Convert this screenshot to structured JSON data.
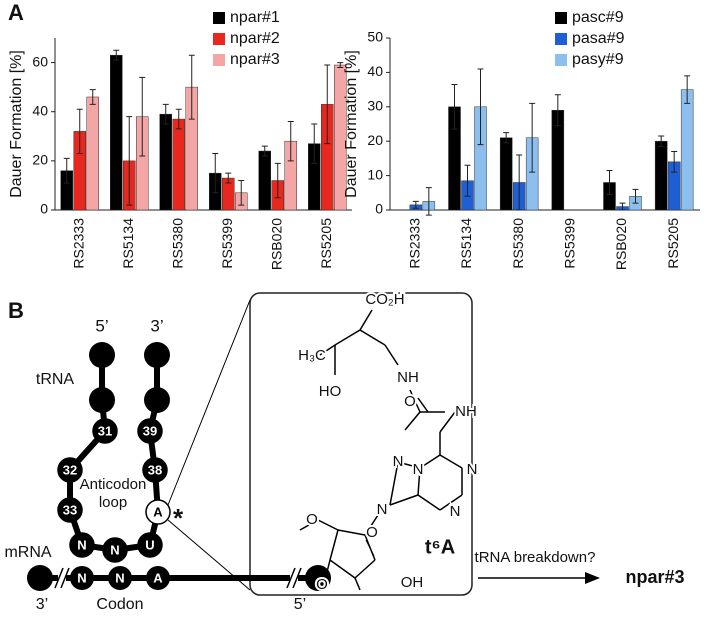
{
  "chart_data": [
    {
      "type": "bar",
      "panel": "A",
      "y_label": "Dauer Formation [%]",
      "categories": [
        "RS2333",
        "RS5134",
        "RS5380",
        "RS5399",
        "RSB020",
        "RS5205"
      ],
      "series": [
        {
          "name": "npar#1",
          "color": "#000000",
          "values": [
            16,
            63,
            39,
            15,
            24,
            27
          ],
          "errors": [
            5,
            2,
            4,
            8,
            2,
            8
          ]
        },
        {
          "name": "npar#2",
          "color": "#e8281e",
          "values": [
            32,
            20,
            37,
            13,
            12,
            43
          ],
          "errors": [
            9,
            18,
            4,
            2,
            7,
            16
          ]
        },
        {
          "name": "npar#3",
          "color": "#f4a6a6",
          "values": [
            46,
            38,
            50,
            7,
            28,
            59
          ],
          "errors": [
            3,
            16,
            13,
            5,
            8,
            1
          ]
        }
      ],
      "ylim": [
        0,
        70
      ],
      "yticks": [
        0,
        20,
        40,
        60
      ],
      "legend": "top-right"
    },
    {
      "type": "bar",
      "y_label": "Dauer Formation [%]",
      "categories": [
        "RS2333",
        "RS5134",
        "RS5380",
        "RS5399",
        "RSB020",
        "RS5205"
      ],
      "series": [
        {
          "name": "pasc#9",
          "color": "#000000",
          "values": [
            0,
            30,
            21,
            29,
            8,
            20
          ],
          "errors": [
            0,
            6.5,
            1.5,
            4.5,
            3.5,
            1.5
          ]
        },
        {
          "name": "pasa#9",
          "color": "#1f5fd6",
          "values": [
            1.5,
            8.5,
            8,
            0,
            1,
            14
          ],
          "errors": [
            1,
            4.5,
            8,
            0,
            1,
            3
          ]
        },
        {
          "name": "pasy#9",
          "color": "#8dbfee",
          "values": [
            2.5,
            30,
            21,
            0,
            4,
            35
          ],
          "errors": [
            4,
            11,
            10,
            0,
            2,
            4
          ]
        }
      ],
      "ylim": [
        0,
        50
      ],
      "yticks": [
        0,
        10,
        20,
        30,
        40,
        50
      ],
      "legend": "top-right"
    }
  ],
  "diagram": {
    "panel": "B",
    "trna": {
      "label": "tRNA",
      "ends": [
        "5’",
        "3’"
      ],
      "nodes": [
        "31",
        "39",
        "32",
        "38",
        "33",
        "A",
        "N",
        "N",
        "U"
      ],
      "loop": [
        "Anticodon",
        "loop"
      ],
      "star": "*"
    },
    "mrna": {
      "label": "mRNA",
      "nodes": [
        "N",
        "N",
        "A"
      ],
      "ends": [
        "3’",
        "5’"
      ],
      "codon": "Codon"
    },
    "chem": [
      "CO₂H",
      "H₃C",
      "HO",
      "O",
      "NH",
      "NH",
      "N",
      "N",
      "N",
      "N",
      "N",
      "O",
      "O",
      "O",
      "OH"
    ],
    "modification": "t⁶A",
    "arrow_label": "tRNA breakdown?",
    "product": "npar#3"
  }
}
